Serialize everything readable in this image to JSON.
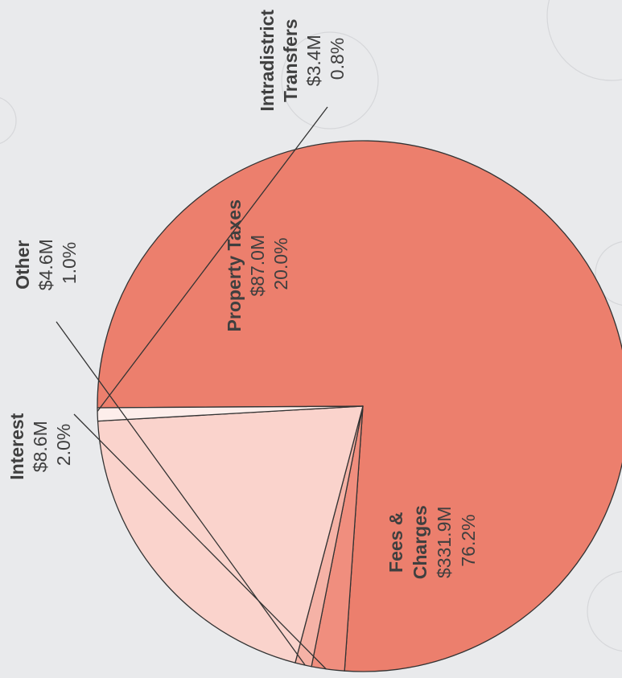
{
  "chart_data": {
    "type": "pie",
    "orientation": "rotated 90° counter-clockwise (labels read bottom-to-top)",
    "slices": [
      {
        "key": "fees",
        "label": "Fees & Charges",
        "label_lines": [
          "Fees &",
          "Charges"
        ],
        "amount": "$331.9M",
        "percent_text": "76.2%",
        "percent": 76.2,
        "color": "#ec7f6d"
      },
      {
        "key": "interest",
        "label": "Interest",
        "label_lines": [
          "Interest"
        ],
        "amount": "$8.6M",
        "percent_text": "2.0%",
        "percent": 2.0,
        "color": "#f08e7e"
      },
      {
        "key": "other",
        "label": "Other",
        "label_lines": [
          "Other"
        ],
        "amount": "$4.6M",
        "percent_text": "1.0%",
        "percent": 1.0,
        "color": "#f5b2a6"
      },
      {
        "key": "property",
        "label": "Property Taxes",
        "label_lines": [
          "Property Taxes"
        ],
        "amount": "$87.0M",
        "percent_text": "20.0%",
        "percent": 20.0,
        "color": "#fad3cc"
      },
      {
        "key": "transfers",
        "label": "Intradistrict Transfers",
        "label_lines": [
          "Intradistrict",
          "Transfers"
        ],
        "amount": "$3.4M",
        "percent_text": "0.8%",
        "percent": 0.8,
        "color": "#fdeeeb"
      }
    ]
  }
}
